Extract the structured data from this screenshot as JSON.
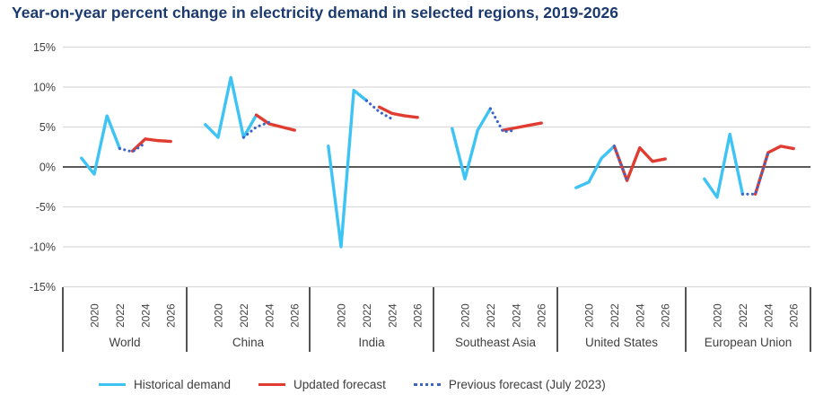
{
  "chart_data": {
    "type": "line",
    "title": "Year-on-year percent change in electricity demand in selected regions, 2019-2026",
    "xlabel": "",
    "ylabel": "",
    "ylim": [
      -15,
      15
    ],
    "grid": "horizontal",
    "legend_position": "bottom",
    "y_axis": {
      "values": [
        15,
        10,
        5,
        0,
        -5,
        -10,
        -15
      ],
      "labels": [
        "15%",
        "10%",
        "5%",
        "0%",
        "-5%",
        "-10%",
        "-15%"
      ]
    },
    "x_axis": {
      "tick_years": [
        2020,
        2022,
        2024,
        2026
      ]
    },
    "colors": {
      "title": "#1C3A6E",
      "historical": "#3EC4F4",
      "updated": "#E03C31",
      "previous": "#3E64C8",
      "gridline": "#D9D9D9",
      "zero_line": "#595959",
      "axis_text": "#3F3F3F",
      "separator": "#404040"
    },
    "legend": [
      {
        "label": "Historical demand",
        "color": "#3EC4F4",
        "style": "solid"
      },
      {
        "label": "Updated forecast",
        "color": "#E03C31",
        "style": "solid"
      },
      {
        "label": "Previous forecast (July 2023)",
        "color": "#3E64C8",
        "style": "dotted"
      }
    ],
    "regions": [
      {
        "name": "World",
        "historical": {
          "years": [
            2019,
            2020,
            2021,
            2022
          ],
          "values": [
            1.1,
            -0.9,
            6.4,
            2.3
          ]
        },
        "updated_forecast": {
          "years": [
            2023,
            2024,
            2025,
            2026
          ],
          "values": [
            2.0,
            3.5,
            3.3,
            3.2
          ]
        },
        "previous_forecast": {
          "years": [
            2022,
            2023,
            2024
          ],
          "values": [
            2.3,
            1.9,
            3.0
          ]
        }
      },
      {
        "name": "China",
        "historical": {
          "years": [
            2019,
            2020,
            2021,
            2022,
            2023
          ],
          "values": [
            5.3,
            3.7,
            11.2,
            3.7,
            6.5
          ]
        },
        "updated_forecast": {
          "years": [
            2023,
            2024,
            2025,
            2026
          ],
          "values": [
            6.5,
            5.4,
            5.0,
            4.6
          ]
        },
        "previous_forecast": {
          "years": [
            2022,
            2023,
            2024
          ],
          "values": [
            3.7,
            5.0,
            5.6
          ]
        }
      },
      {
        "name": "India",
        "historical": {
          "years": [
            2019,
            2020,
            2021,
            2022
          ],
          "values": [
            2.6,
            -10.0,
            9.6,
            8.3
          ]
        },
        "updated_forecast": {
          "years": [
            2023,
            2024,
            2025,
            2026
          ],
          "values": [
            7.5,
            6.7,
            6.4,
            6.2
          ]
        },
        "previous_forecast": {
          "years": [
            2022,
            2023,
            2024
          ],
          "values": [
            8.3,
            6.9,
            6.0
          ]
        }
      },
      {
        "name": "Southeast Asia",
        "historical": {
          "years": [
            2019,
            2020,
            2021,
            2022
          ],
          "values": [
            4.8,
            -1.5,
            4.6,
            7.3
          ]
        },
        "updated_forecast": {
          "years": [
            2023,
            2024,
            2025,
            2026
          ],
          "values": [
            4.6,
            4.9,
            5.2,
            5.5
          ]
        },
        "previous_forecast": {
          "years": [
            2022,
            2023,
            2024
          ],
          "values": [
            7.3,
            4.4,
            4.6
          ]
        }
      },
      {
        "name": "United States",
        "historical": {
          "years": [
            2019,
            2020,
            2021,
            2022
          ],
          "values": [
            -2.6,
            -1.9,
            1.1,
            2.6
          ]
        },
        "updated_forecast": {
          "years": [
            2022,
            2023,
            2024,
            2025,
            2026
          ],
          "values": [
            2.6,
            -1.7,
            2.4,
            0.7,
            1.0
          ]
        },
        "previous_forecast": {
          "years": [
            2022,
            2023
          ],
          "values": [
            2.6,
            -1.7
          ]
        }
      },
      {
        "name": "European Union",
        "historical": {
          "years": [
            2019,
            2020,
            2021,
            2022
          ],
          "values": [
            -1.5,
            -3.8,
            4.1,
            -3.4
          ]
        },
        "updated_forecast": {
          "years": [
            2023,
            2024,
            2025,
            2026
          ],
          "values": [
            -3.4,
            1.8,
            2.6,
            2.3
          ]
        },
        "previous_forecast": {
          "years": [
            2022,
            2023,
            2024
          ],
          "values": [
            -3.4,
            -3.4,
            1.7
          ]
        }
      }
    ]
  }
}
